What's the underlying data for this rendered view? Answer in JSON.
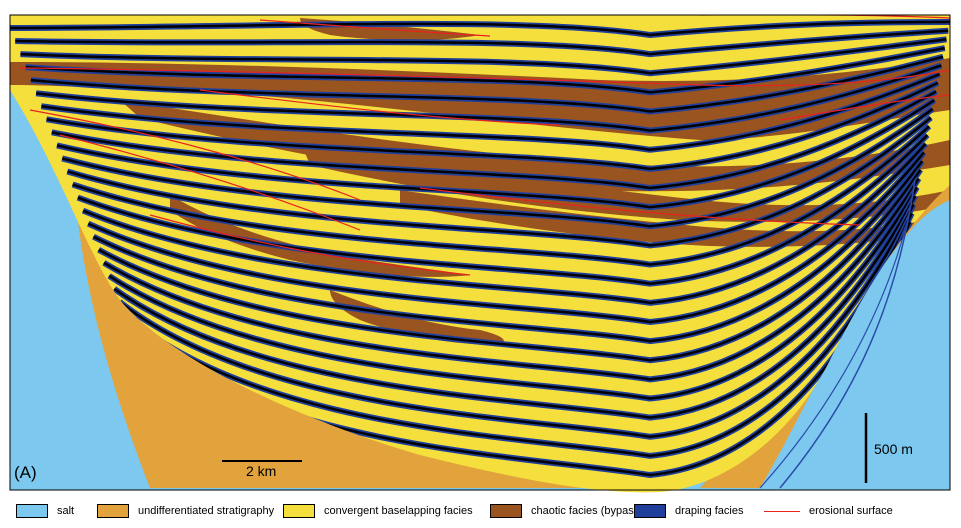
{
  "figure": {
    "panel_label": "(A)",
    "scale_horizontal": "2 km",
    "scale_vertical": "500 m"
  },
  "colors": {
    "salt": "#7cc8ef",
    "undifferentiated": "#e2a33c",
    "convergent": "#f5df3d",
    "chaotic": "#9a5420",
    "draping": "#1f3f9b",
    "erosional": "#e8231f"
  },
  "legend": [
    {
      "key": "salt",
      "label": "salt",
      "kind": "swatch"
    },
    {
      "key": "undifferentiated",
      "label": "undifferentiated stratigraphy",
      "kind": "swatch"
    },
    {
      "key": "convergent",
      "label": "convergent baselapping facies",
      "kind": "swatch"
    },
    {
      "key": "chaotic",
      "label": "chaotic facies (bypass)",
      "kind": "swatch"
    },
    {
      "key": "draping",
      "label": "draping facies",
      "kind": "swatch"
    },
    {
      "key": "erosional",
      "label": "erosional surface",
      "kind": "line"
    }
  ]
}
